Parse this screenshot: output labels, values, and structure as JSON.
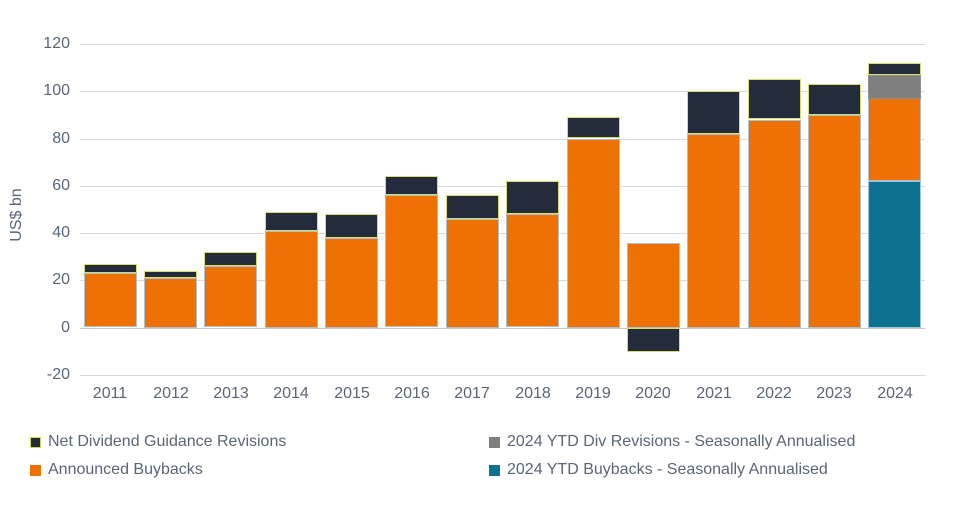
{
  "chart_data": {
    "type": "bar",
    "stacked": true,
    "title": "",
    "ylabel": "US$ bn",
    "xlabel": "",
    "ylim": [
      -20,
      120
    ],
    "ytick_interval": 20,
    "yticks": [
      120,
      100,
      80,
      60,
      40,
      20,
      0,
      -20
    ],
    "grid": "horizontal",
    "legend_position": "bottom-two-columns",
    "categories": [
      "2011",
      "2012",
      "2013",
      "2014",
      "2015",
      "2016",
      "2017",
      "2018",
      "2019",
      "2020",
      "2021",
      "2022",
      "2023",
      "2024"
    ],
    "series": [
      {
        "name": "2024 YTD Buybacks - Seasonally Annualised",
        "color": "#0C7290",
        "border_color": "#9fc5d8",
        "values": [
          0,
          0,
          0,
          0,
          0,
          0,
          0,
          0,
          0,
          0,
          0,
          0,
          0,
          62
        ]
      },
      {
        "name": "Announced Buybacks",
        "color": "#EE7104",
        "border_color": "#aebfcd",
        "values": [
          23,
          21,
          26,
          41,
          38,
          56,
          46,
          48,
          80,
          36,
          82,
          88,
          90,
          35
        ]
      },
      {
        "name": "2024 YTD Div Revisions - Seasonally Annualised",
        "color": "#7F7F7F",
        "border_color": "#8f8f8f",
        "values": [
          0,
          0,
          0,
          0,
          0,
          0,
          0,
          0,
          0,
          0,
          0,
          0,
          0,
          10
        ]
      },
      {
        "name": "Net Dividend Guidance Revisions",
        "color": "#242B3A",
        "border_color": "#d9dd6d",
        "values": [
          4,
          3,
          6,
          8,
          10,
          8,
          10,
          14,
          9,
          -10,
          18,
          17,
          13,
          5
        ]
      }
    ],
    "stacked_totals": [
      27,
      24,
      32,
      49,
      48,
      64,
      56,
      62,
      89,
      36,
      100,
      105,
      103,
      112
    ]
  },
  "legend": {
    "items": [
      {
        "label": "Net Dividend Guidance Revisions",
        "color": "#242B3A",
        "border_color": "#cdd45e"
      },
      {
        "label": "Announced Buybacks",
        "color": "#EE7104",
        "border_color": "#EE7104"
      },
      {
        "label": "2024 YTD Div Revisions - Seasonally Annualised",
        "color": "#7F7F7F",
        "border_color": "#7F7F7F"
      },
      {
        "label": "2024 YTD Buybacks - Seasonally Annualised",
        "color": "#0C7290",
        "border_color": "#0C7290"
      }
    ]
  },
  "colors": {
    "axis_text": "#5A6577",
    "gridline": "#d9d9d9",
    "background": "#ffffff"
  }
}
